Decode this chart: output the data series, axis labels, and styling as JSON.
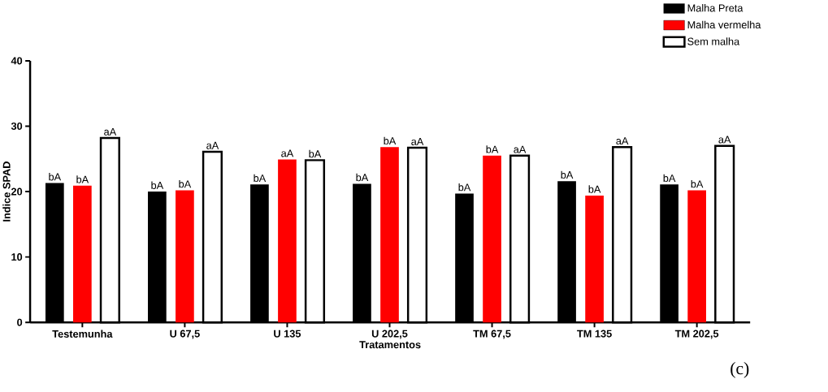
{
  "chart_data": {
    "type": "bar",
    "xlabel": "Tratamentos",
    "ylabel": "Indice SPAD",
    "categories": [
      "Testemunha",
      "U 67,5",
      "U 135",
      "U 202,5",
      "TM 67,5",
      "TM 135",
      "TM 202,5"
    ],
    "series": [
      {
        "name": "Malha Preta",
        "color": "#000000",
        "values": [
          21.3,
          20.0,
          21.1,
          21.2,
          19.7,
          21.6,
          21.1
        ],
        "value_labels": [
          "bA",
          "bA",
          "bA",
          "bA",
          "bA",
          "bA",
          "bA"
        ]
      },
      {
        "name": "Malha vermelha",
        "color": "#ff0000",
        "values": [
          20.9,
          20.2,
          24.9,
          26.8,
          25.5,
          19.4,
          20.2
        ],
        "value_labels": [
          "bA",
          "bA",
          "aA",
          "bA",
          "bA",
          "bA",
          "bA"
        ]
      },
      {
        "name": "Sem malha",
        "color": "#ffffff",
        "values": [
          28.2,
          26.1,
          24.8,
          26.7,
          25.5,
          26.8,
          27.0
        ],
        "value_labels": [
          "aA",
          "aA",
          "bA",
          "aA",
          "aA",
          "aA",
          "aA"
        ]
      }
    ],
    "ylim": [
      0,
      40
    ],
    "yticks": [
      0,
      10,
      20,
      30,
      40
    ],
    "grid": false,
    "legend": "top right",
    "annotations": [
      "(c)"
    ]
  }
}
